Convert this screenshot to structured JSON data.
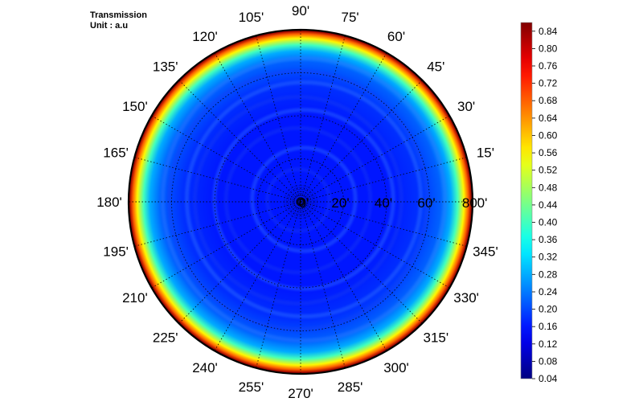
{
  "chart_data": {
    "type": "heatmap",
    "projection": "polar",
    "title": "Transmission",
    "unit_label": "Unit : a.u",
    "angular_ticks": [
      "0'",
      "15'",
      "30'",
      "45'",
      "60'",
      "75'",
      "90'",
      "105'",
      "120'",
      "135'",
      "150'",
      "165'",
      "180'",
      "195'",
      "210'",
      "225'",
      "240'",
      "255'",
      "270'",
      "285'",
      "300'",
      "315'",
      "330'",
      "345'"
    ],
    "radial_ticks": [
      "0'",
      "20'",
      "40'",
      "60'",
      "80'"
    ],
    "radial_range": [
      0,
      80
    ],
    "colorbar": {
      "range": [
        0.04,
        0.86
      ],
      "ticks": [
        "0.04",
        "0.08",
        "0.12",
        "0.16",
        "0.20",
        "0.24",
        "0.28",
        "0.32",
        "0.36",
        "0.40",
        "0.44",
        "0.48",
        "0.52",
        "0.56",
        "0.60",
        "0.64",
        "0.68",
        "0.72",
        "0.76",
        "0.80",
        "0.84"
      ],
      "tick_values": [
        0.04,
        0.08,
        0.12,
        0.16,
        0.2,
        0.24,
        0.28,
        0.32,
        0.36,
        0.4,
        0.44,
        0.48,
        0.52,
        0.56,
        0.6,
        0.64,
        0.68,
        0.72,
        0.76,
        0.8,
        0.84
      ],
      "colormap": "jet"
    },
    "radial_profile": [
      {
        "r": 0,
        "value": 0.16
      },
      {
        "r": 20,
        "value": 0.16
      },
      {
        "r": 40,
        "value": 0.16
      },
      {
        "r": 55,
        "value": 0.18
      },
      {
        "r": 65,
        "value": 0.22
      },
      {
        "r": 70,
        "value": 0.28
      },
      {
        "r": 73,
        "value": 0.4
      },
      {
        "r": 76,
        "value": 0.56
      },
      {
        "r": 78,
        "value": 0.68
      },
      {
        "r": 79.5,
        "value": 0.84
      }
    ],
    "grid": true
  }
}
